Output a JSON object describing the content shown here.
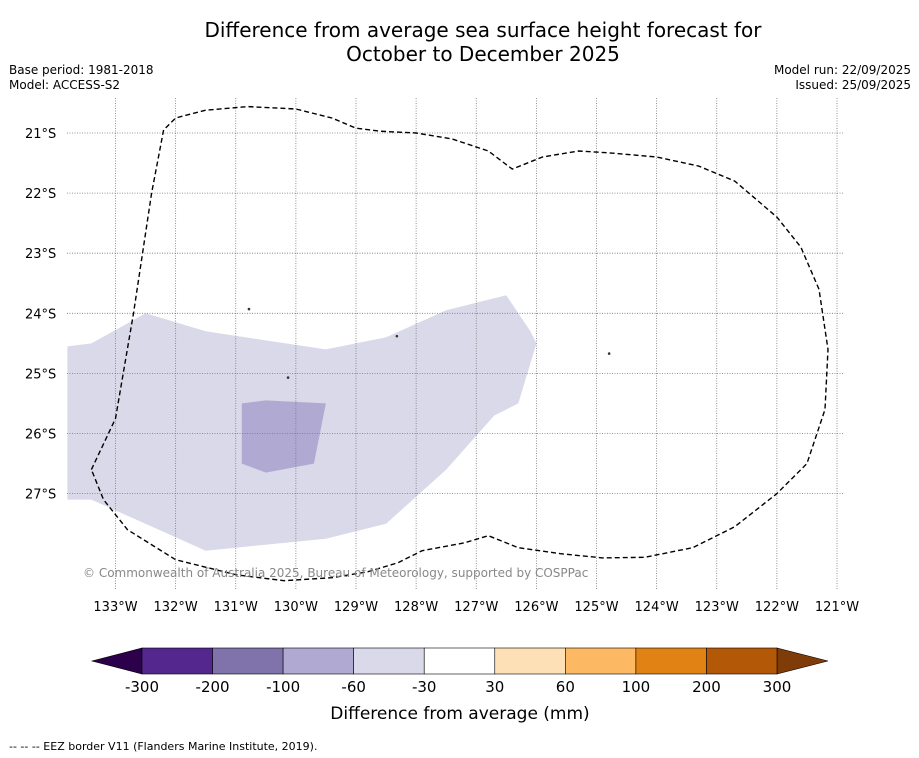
{
  "chart_data": {
    "type": "map",
    "title_line1": "Difference from average sea surface height forecast for",
    "title_line2": "October to December 2025",
    "base_period": "Base period: 1981-2018",
    "model": "Model: ACCESS-S2",
    "model_run": "Model run: 22/09/2025",
    "issued": "Issued: 25/09/2025",
    "lon_range": [
      -133.8,
      -120.9
    ],
    "lat_range": [
      -28.45,
      -20.5
    ],
    "lon_ticks": [
      -133,
      -132,
      -131,
      -130,
      -129,
      -128,
      -127,
      -126,
      -125,
      -124,
      -123,
      -122,
      -121
    ],
    "lon_tick_labels": [
      "133°W",
      "132°W",
      "131°W",
      "130°W",
      "129°W",
      "128°W",
      "127°W",
      "126°W",
      "125°W",
      "124°W",
      "123°W",
      "122°W",
      "121°W"
    ],
    "lat_ticks": [
      -21,
      -22,
      -23,
      -24,
      -25,
      -26,
      -27
    ],
    "lat_tick_labels": [
      "21°S",
      "22°S",
      "23°S",
      "24°S",
      "25°S",
      "26°S",
      "27°S"
    ],
    "regions": [
      {
        "category": "-60 to -30",
        "color": "#d9d9ea",
        "polygon": [
          [
            -133.8,
            -24.55
          ],
          [
            -133.4,
            -24.5
          ],
          [
            -132.5,
            -24.0
          ],
          [
            -131.5,
            -24.3
          ],
          [
            -129.5,
            -24.6
          ],
          [
            -128.5,
            -24.4
          ],
          [
            -127.5,
            -23.95
          ],
          [
            -126.5,
            -23.7
          ],
          [
            -126.1,
            -24.3
          ],
          [
            -126.0,
            -24.5
          ],
          [
            -126.3,
            -25.5
          ],
          [
            -126.7,
            -25.7
          ],
          [
            -127.5,
            -26.6
          ],
          [
            -128.5,
            -27.5
          ],
          [
            -129.5,
            -27.75
          ],
          [
            -131.5,
            -27.95
          ],
          [
            -133.4,
            -27.1
          ],
          [
            -133.8,
            -27.1
          ]
        ]
      },
      {
        "category": "-100 to -60",
        "color": "#b0aad2",
        "polygon": [
          [
            -130.9,
            -25.5
          ],
          [
            -130.5,
            -25.45
          ],
          [
            -129.5,
            -25.5
          ],
          [
            -129.7,
            -26.5
          ],
          [
            -130.5,
            -26.65
          ],
          [
            -130.9,
            -26.5
          ]
        ]
      }
    ],
    "eez_border": [
      [
        -133.4,
        -26.6
      ],
      [
        -133.0,
        -25.75
      ],
      [
        -132.7,
        -24.0
      ],
      [
        -132.4,
        -22.0
      ],
      [
        -132.2,
        -20.95
      ],
      [
        -132.0,
        -20.75
      ],
      [
        -131.5,
        -20.62
      ],
      [
        -130.8,
        -20.56
      ],
      [
        -130.0,
        -20.6
      ],
      [
        -129.4,
        -20.75
      ],
      [
        -129.0,
        -20.92
      ],
      [
        -128.6,
        -20.97
      ],
      [
        -128.0,
        -21.0
      ],
      [
        -127.4,
        -21.1
      ],
      [
        -126.8,
        -21.3
      ],
      [
        -126.4,
        -21.6
      ],
      [
        -125.9,
        -21.4
      ],
      [
        -125.3,
        -21.3
      ],
      [
        -124.8,
        -21.33
      ],
      [
        -124.0,
        -21.4
      ],
      [
        -123.3,
        -21.55
      ],
      [
        -122.7,
        -21.8
      ],
      [
        -122.0,
        -22.4
      ],
      [
        -121.6,
        -22.9
      ],
      [
        -121.3,
        -23.6
      ],
      [
        -121.15,
        -24.6
      ],
      [
        -121.2,
        -25.6
      ],
      [
        -121.5,
        -26.5
      ],
      [
        -122.0,
        -27.0
      ],
      [
        -122.7,
        -27.55
      ],
      [
        -123.4,
        -27.9
      ],
      [
        -124.2,
        -28.06
      ],
      [
        -124.9,
        -28.07
      ],
      [
        -125.6,
        -28.0
      ],
      [
        -126.3,
        -27.9
      ],
      [
        -126.8,
        -27.7
      ],
      [
        -127.2,
        -27.82
      ],
      [
        -127.9,
        -27.95
      ],
      [
        -128.3,
        -28.15
      ],
      [
        -128.8,
        -28.3
      ],
      [
        -129.4,
        -28.4
      ],
      [
        -130.2,
        -28.45
      ],
      [
        -131.0,
        -28.35
      ],
      [
        -132.0,
        -28.1
      ],
      [
        -132.8,
        -27.6
      ],
      [
        -133.2,
        -27.1
      ],
      [
        -133.4,
        -26.6
      ]
    ],
    "islands": [
      [
        -130.78,
        -23.93
      ],
      [
        -128.32,
        -24.38
      ],
      [
        -130.13,
        -25.07
      ],
      [
        -124.79,
        -24.67
      ]
    ],
    "colorbar": {
      "label": "Difference from average (mm)",
      "boundaries": [
        "-300",
        "-200",
        "-100",
        "-60",
        "-30",
        "30",
        "60",
        "100",
        "200",
        "300"
      ],
      "colors": [
        "#54278f",
        "#8073ac",
        "#b0aad2",
        "#d9d9ea",
        "#ffffff",
        "#fee0b6",
        "#fdb863",
        "#e08214",
        "#b35806"
      ],
      "extend_min_color": "#2d004b",
      "extend_max_color": "#7f3b08"
    },
    "watermark": "© Commonwealth of Australia 2025, Bureau of Meteorology, supported by COSPPac"
  },
  "footer": "--  --  -- EEZ border V11 (Flanders Marine Institute, 2019)."
}
